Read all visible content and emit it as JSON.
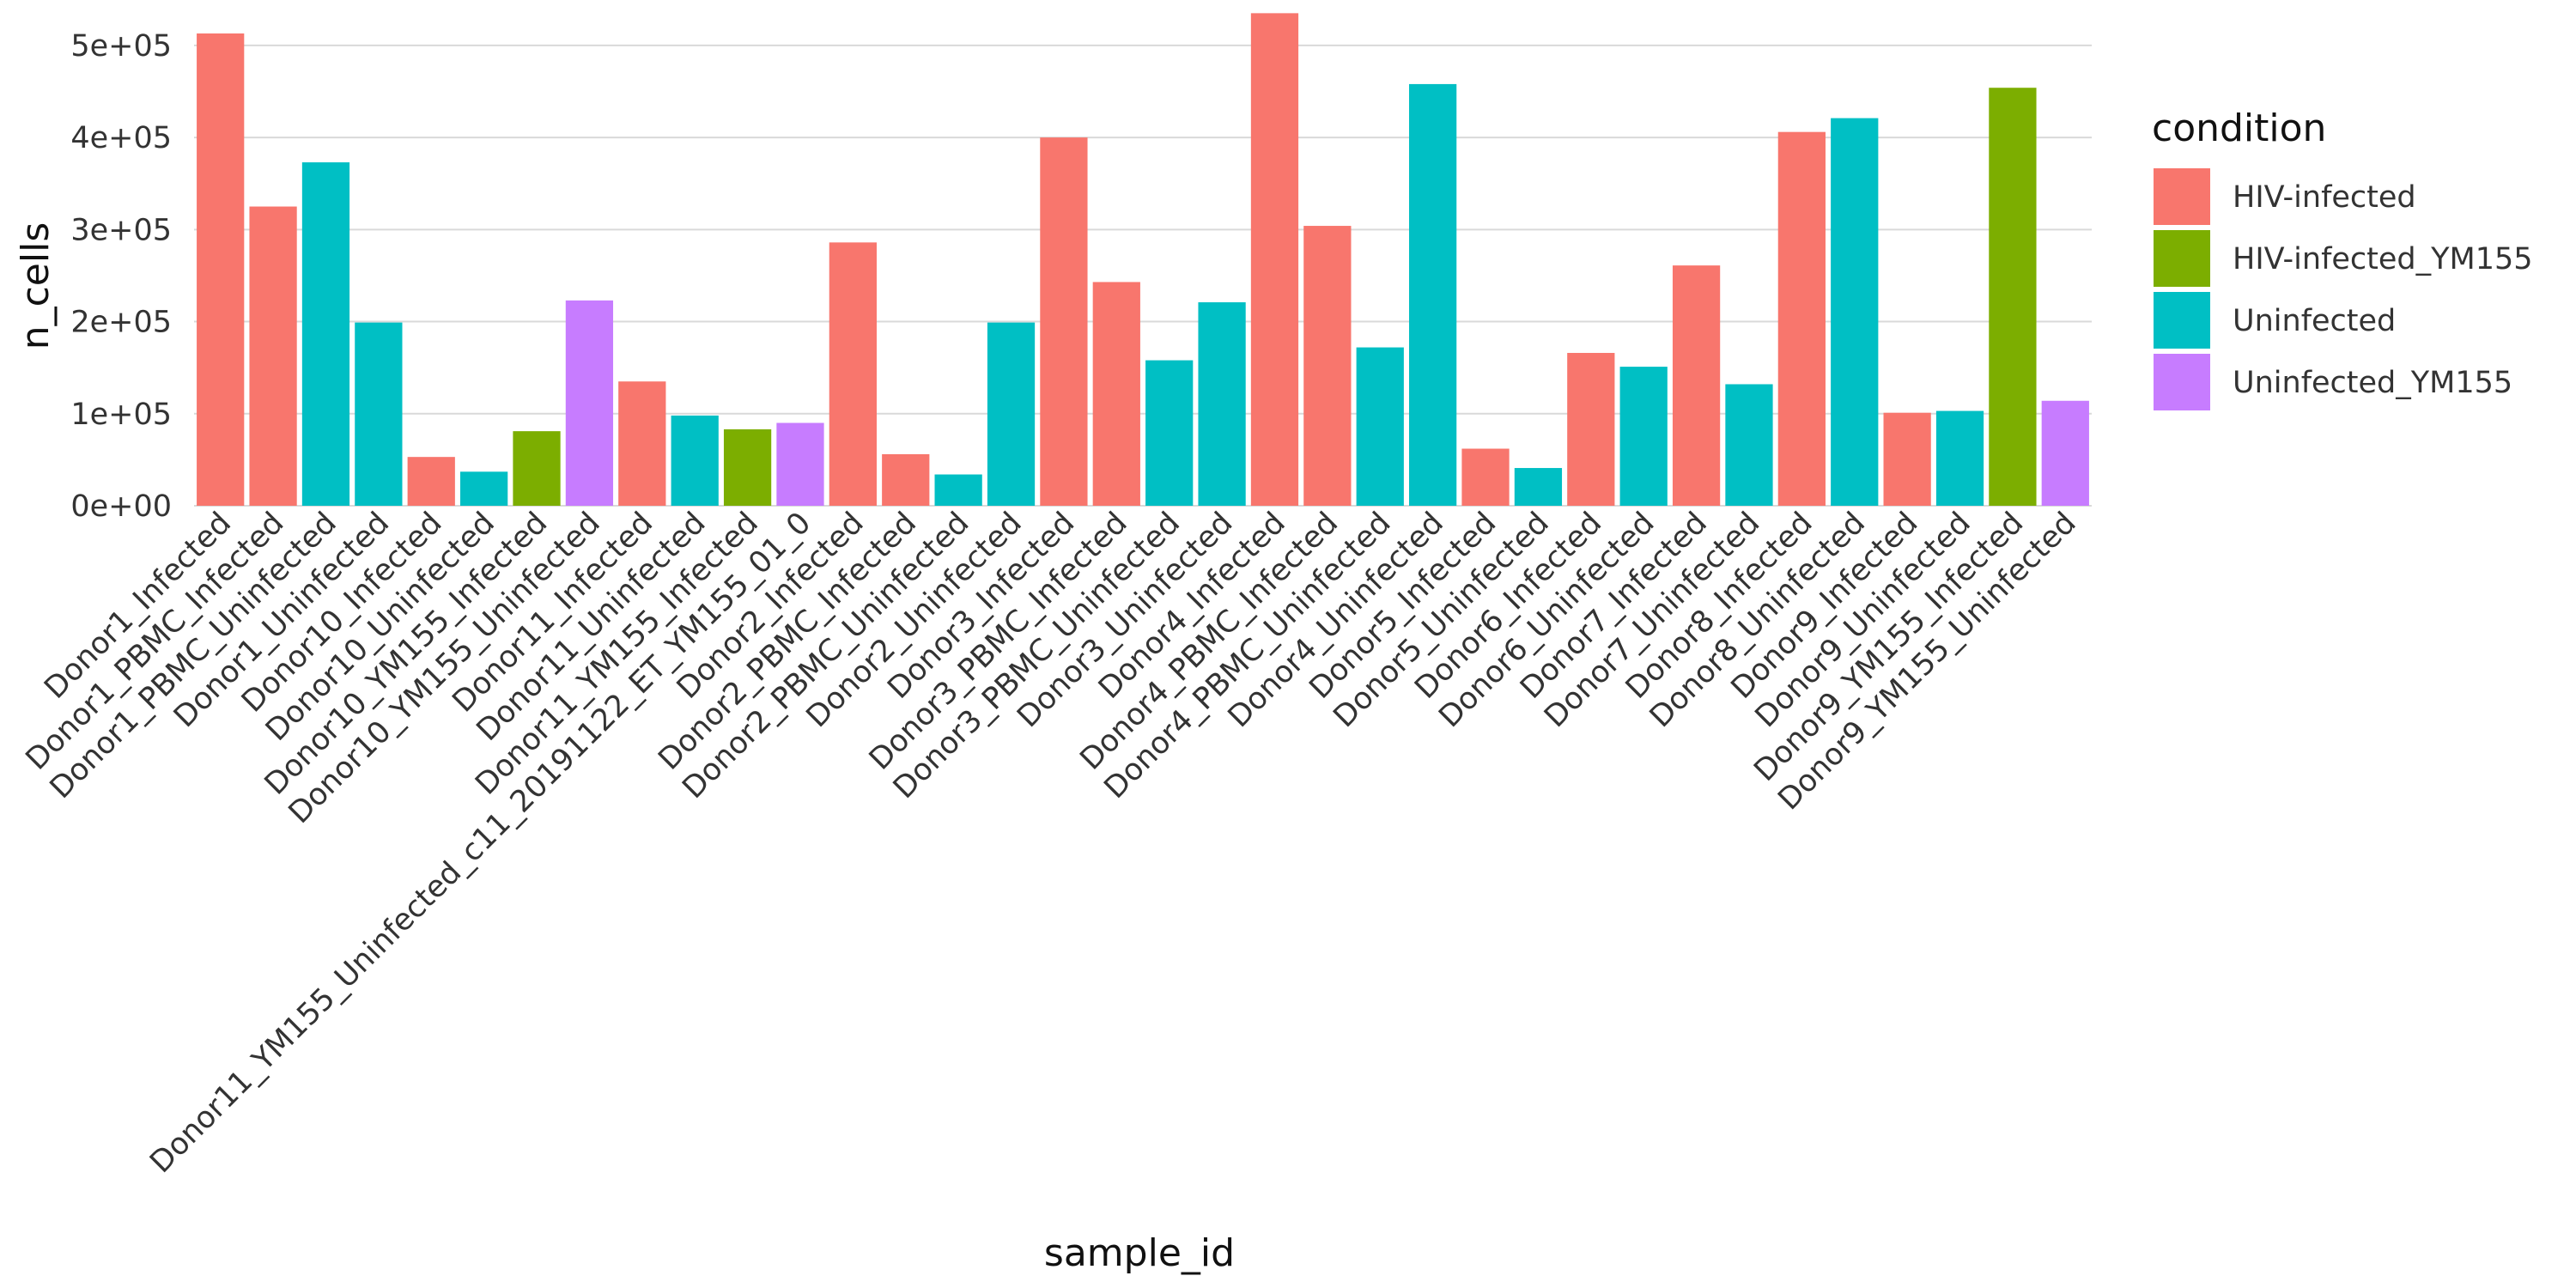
{
  "chart_data": {
    "type": "bar",
    "xlabel": "sample_id",
    "ylabel": "n_cells",
    "ylim": [
      0,
      540000
    ],
    "y_ticks": [
      0,
      100000,
      200000,
      300000,
      400000,
      500000
    ],
    "y_tick_labels": [
      "0e+00",
      "1e+05",
      "2e+05",
      "3e+05",
      "4e+05",
      "5e+05"
    ],
    "grid": true,
    "legend": {
      "title": "condition",
      "placement": "right",
      "entries": [
        {
          "label": "HIV-infected",
          "color": "#F8766D"
        },
        {
          "label": "HIV-infected_YM155",
          "color": "#7CAE00"
        },
        {
          "label": "Uninfected",
          "color": "#00BFC4"
        },
        {
          "label": "Uninfected_YM155",
          "color": "#C77CFF"
        }
      ]
    },
    "categories": [
      "Donor1_Infected",
      "Donor1_PBMC_Infected",
      "Donor1_PBMC_Uninfected",
      "Donor1_Uninfected",
      "Donor10_Infected",
      "Donor10_Uninfected",
      "Donor10_YM155_Infected",
      "Donor10_YM155_Uninfected",
      "Donor11_Infected",
      "Donor11_Uninfected",
      "Donor11_YM155_Infected",
      "Donor11_YM155_Uninfected_c11_20191122_ET_YM155_01_0",
      "Donor2_Infected",
      "Donor2_PBMC_Infected",
      "Donor2_PBMC_Uninfected",
      "Donor2_Uninfected",
      "Donor3_Infected",
      "Donor3_PBMC_Infected",
      "Donor3_PBMC_Uninfected",
      "Donor3_Uninfected",
      "Donor4_Infected",
      "Donor4_PBMC_Infected",
      "Donor4_PBMC_Uninfected",
      "Donor4_Uninfected",
      "Donor5_Infected",
      "Donor5_Uninfected",
      "Donor6_Infected",
      "Donor6_Uninfected",
      "Donor7_Infected",
      "Donor7_Uninfected",
      "Donor8_Infected",
      "Donor8_Uninfected",
      "Donor9_Infected",
      "Donor9_Uninfected",
      "Donor9_YM155_Infected",
      "Donor9_YM155_Uninfected"
    ],
    "values": [
      513000,
      325000,
      373000,
      199000,
      53000,
      37000,
      81000,
      223000,
      135000,
      98000,
      83000,
      90000,
      286000,
      56000,
      34000,
      199000,
      400000,
      243000,
      158000,
      221000,
      535000,
      304000,
      172000,
      458000,
      62000,
      41000,
      166000,
      151000,
      261000,
      132000,
      406000,
      421000,
      101000,
      103000,
      454000,
      114000
    ],
    "conditions": [
      "HIV-infected",
      "HIV-infected",
      "Uninfected",
      "Uninfected",
      "HIV-infected",
      "Uninfected",
      "HIV-infected_YM155",
      "Uninfected_YM155",
      "HIV-infected",
      "Uninfected",
      "HIV-infected_YM155",
      "Uninfected_YM155",
      "HIV-infected",
      "HIV-infected",
      "Uninfected",
      "Uninfected",
      "HIV-infected",
      "HIV-infected",
      "Uninfected",
      "Uninfected",
      "HIV-infected",
      "HIV-infected",
      "Uninfected",
      "Uninfected",
      "HIV-infected",
      "Uninfected",
      "HIV-infected",
      "Uninfected",
      "HIV-infected",
      "Uninfected",
      "HIV-infected",
      "Uninfected",
      "HIV-infected",
      "Uninfected",
      "HIV-infected_YM155",
      "Uninfected_YM155"
    ]
  }
}
